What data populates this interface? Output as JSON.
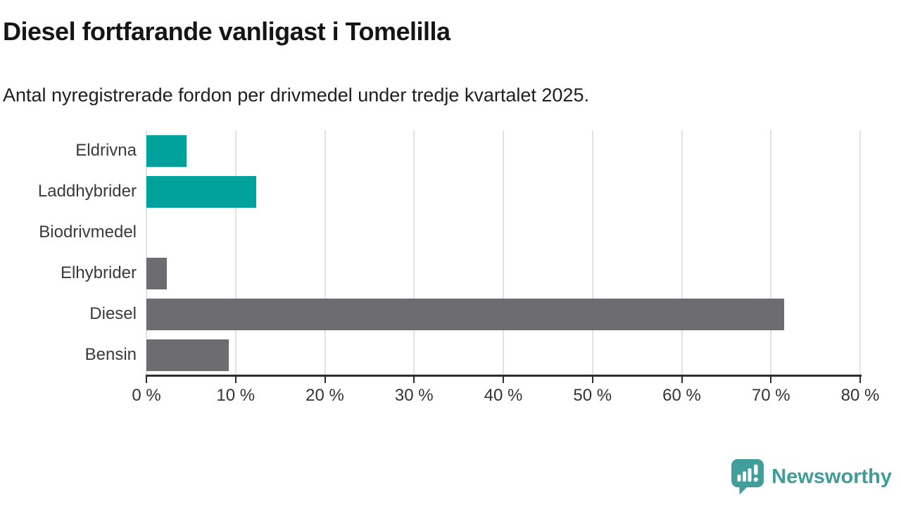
{
  "title": "Diesel fortfarande vanligast i Tomelilla",
  "subtitle": "Antal nyregistrerade fordon per drivmedel under tredje kvartalet 2025.",
  "chart_data": {
    "type": "bar",
    "orientation": "horizontal",
    "title": "Diesel fortfarande vanligast i Tomelilla",
    "subtitle": "Antal nyregistrerade fordon per drivmedel under tredje kvartalet 2025.",
    "categories": [
      "Eldrivna",
      "Laddhybrider",
      "Biodrivmedel",
      "Elhybrider",
      "Diesel",
      "Bensin"
    ],
    "values": [
      4.5,
      12.3,
      0,
      2.3,
      71.5,
      9.2
    ],
    "unit": "%",
    "xlim": [
      0,
      80
    ],
    "x_ticks": [
      0,
      10,
      20,
      30,
      40,
      50,
      60,
      70,
      80
    ],
    "x_tick_labels": [
      "0 %",
      "10 %",
      "20 %",
      "30 %",
      "40 %",
      "50 %",
      "60 %",
      "70 %",
      "80 %"
    ],
    "bar_colors": [
      "#00a29b",
      "#00a29b",
      "#6d6c71",
      "#6d6c71",
      "#6d6c71",
      "#6d6c71"
    ],
    "grid": "vertical",
    "legend": "none"
  },
  "colors": {
    "accent_teal": "#00a29b",
    "base_gray": "#6d6c71",
    "gridline": "#e2e2e2",
    "axis": "#2d2d2d",
    "label_text": "#3a3a3a",
    "logo_teal": "#3f9d99"
  },
  "footer": {
    "brand": "Newsworthy",
    "logo_icon": "newsworthy-speech-bubble-chart-icon"
  }
}
